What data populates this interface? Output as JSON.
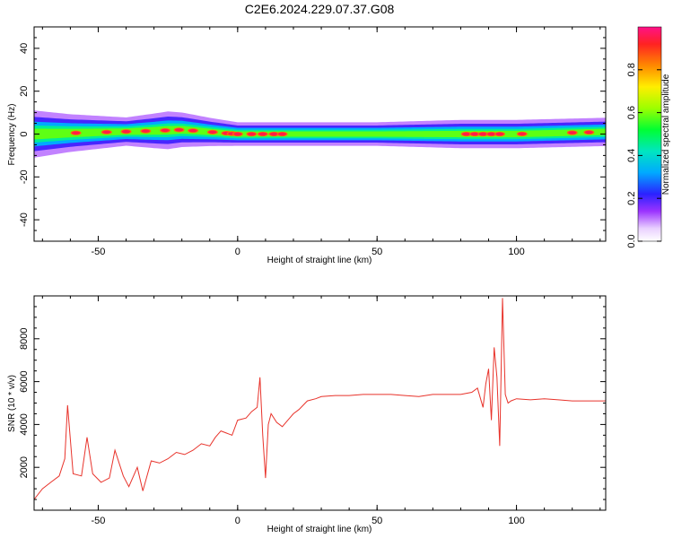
{
  "title": "C2E6.2024.229.07.37.G08",
  "chart_data": [
    {
      "type": "heatmap",
      "xlabel": "Height of straight line (km)",
      "ylabel": "Frequency (Hz)",
      "xlim": [
        -73,
        132
      ],
      "ylim": [
        -50,
        50
      ],
      "xticks": [
        -50,
        0,
        50,
        100
      ],
      "yticks": [
        -40,
        -20,
        0,
        20,
        40
      ],
      "colorbar": {
        "label": "Normalized spectral amplitude",
        "range": [
          0,
          1
        ],
        "ticks": [
          0.0,
          0.2,
          0.4,
          0.6,
          0.8
        ],
        "tick_labels": [
          "0.0",
          "0.2",
          "0.4",
          "0.6",
          "0.8"
        ]
      },
      "band": {
        "center_freq_hz": 0,
        "halfwidth_hz": [
          [
            -73,
            5
          ],
          [
            -60,
            4
          ],
          [
            -40,
            3
          ],
          [
            -25,
            4
          ],
          [
            -10,
            3
          ],
          [
            0,
            2.5
          ],
          [
            20,
            2.5
          ],
          [
            50,
            2.5
          ],
          [
            80,
            3
          ],
          [
            100,
            3
          ],
          [
            132,
            3
          ]
        ],
        "center_offset_hz": [
          [
            -73,
            0
          ],
          [
            -30,
            1.5
          ],
          [
            -20,
            2
          ],
          [
            -10,
            1
          ],
          [
            0,
            0
          ],
          [
            50,
            0
          ],
          [
            100,
            0
          ],
          [
            132,
            1
          ]
        ],
        "peaks_km": [
          -58,
          -47,
          -40,
          -33,
          -26,
          -21,
          -16,
          -9,
          -4,
          -2,
          0,
          5,
          9,
          13,
          16,
          82,
          85,
          88,
          91,
          94,
          102,
          120,
          126
        ]
      }
    },
    {
      "type": "line",
      "xlabel": "Height of straight line (km)",
      "ylabel": "SNR (10 * v/v)",
      "xlim": [
        -73,
        132
      ],
      "ylim": [
        0,
        10000
      ],
      "xticks": [
        -50,
        0,
        50,
        100
      ],
      "yticks": [
        2000,
        4000,
        6000,
        8000
      ],
      "series": [
        {
          "color": "#e8332b",
          "x": [
            -73,
            -70,
            -67,
            -64,
            -62,
            -61,
            -59,
            -56,
            -54,
            -52,
            -49,
            -46,
            -44,
            -41,
            -39,
            -36,
            -34,
            -31,
            -28,
            -25,
            -22,
            -19,
            -16,
            -13,
            -10,
            -8,
            -6,
            -4,
            -2,
            0,
            3,
            5,
            7,
            8,
            9,
            10,
            11,
            12,
            14,
            16,
            18,
            20,
            22,
            25,
            28,
            30,
            35,
            40,
            45,
            50,
            55,
            60,
            65,
            70,
            75,
            80,
            84,
            86,
            88,
            89,
            90,
            91,
            92,
            93,
            94,
            95,
            96,
            97,
            98,
            100,
            105,
            110,
            115,
            120,
            125,
            132
          ],
          "y": [
            500,
            1000,
            1300,
            1600,
            2400,
            4900,
            1700,
            1600,
            3400,
            1700,
            1300,
            1500,
            2800,
            1600,
            1100,
            2000,
            900,
            2300,
            2200,
            2400,
            2700,
            2600,
            2800,
            3100,
            3000,
            3400,
            3700,
            3600,
            3500,
            4200,
            4300,
            4600,
            4800,
            6200,
            3500,
            1500,
            4000,
            4500,
            4100,
            3900,
            4200,
            4500,
            4700,
            5100,
            5200,
            5300,
            5350,
            5350,
            5400,
            5400,
            5400,
            5350,
            5300,
            5400,
            5400,
            5400,
            5500,
            5700,
            4800,
            5900,
            6600,
            4200,
            7600,
            6200,
            3000,
            9900,
            5400,
            5000,
            5100,
            5200,
            5150,
            5200,
            5150,
            5100,
            5100,
            5100
          ]
        }
      ]
    }
  ]
}
